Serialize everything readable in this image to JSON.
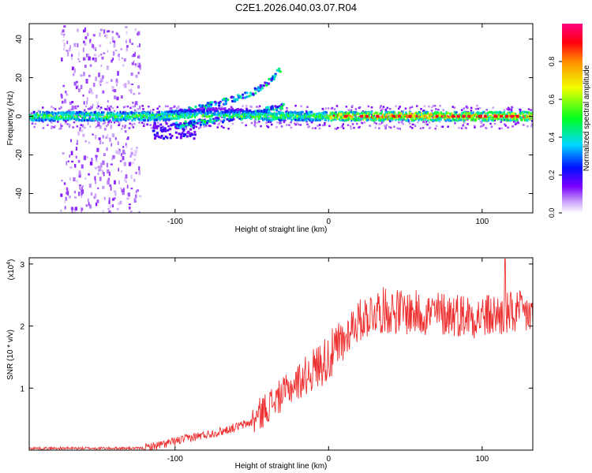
{
  "title": "C2E1.2026.040.03.07.R04",
  "chart_data": [
    {
      "type": "heatmap",
      "title": "C2E1.2026.040.03.07.R04",
      "xlabel": "Height of straight line (km)",
      "ylabel": "Frequency (Hz)",
      "xlim": [
        -195,
        133
      ],
      "ylim": [
        -50,
        48
      ],
      "xticks": [
        -100,
        0,
        100
      ],
      "yticks": [
        -40,
        -20,
        0,
        20,
        40
      ],
      "xtick_labels": [
        "-100",
        "0",
        "100"
      ],
      "ytick_labels": [
        "-40",
        "-20",
        "0",
        "20",
        "40"
      ],
      "colorbar": {
        "label": "Normalized spectral amplitude",
        "range": [
          0,
          1
        ],
        "ticks": [
          0.0,
          0.2,
          0.4,
          0.6,
          0.8
        ],
        "tick_labels": [
          "0.0",
          "0.2",
          "0.4",
          "0.6",
          "0.8"
        ],
        "colors": [
          "#ffffff",
          "#c8a0f8",
          "#7a00ff",
          "#0010ff",
          "#00d8ff",
          "#00ff20",
          "#f0ff00",
          "#ff8c00",
          "#ff0010",
          "#ff0080"
        ]
      },
      "main_band": {
        "frequency_hz": 0,
        "amplitude_start": 0.35,
        "amplitude_end": 0.85
      },
      "branches": [
        {
          "name": "upper-branch",
          "x": [
            -115,
            -95,
            -80,
            -65,
            -50,
            -38,
            -32
          ],
          "y": [
            0,
            3,
            6,
            9,
            13,
            20,
            25
          ]
        },
        {
          "name": "lower-branch",
          "x": [
            -100,
            -80,
            -60,
            -45,
            -30
          ],
          "y": [
            -4,
            -2,
            0,
            3,
            6
          ]
        }
      ]
    },
    {
      "type": "line",
      "xlabel": "Height of straight line (km)",
      "ylabel": "SNR (10 * v/v)",
      "y_scale_label": "(x10",
      "y_scale_exponent": "4",
      "xlim": [
        -195,
        133
      ],
      "ylim": [
        0,
        3.1
      ],
      "xticks": [
        -100,
        0,
        100
      ],
      "yticks": [
        1,
        2,
        3
      ],
      "xtick_labels": [
        "-100",
        "0",
        "100"
      ],
      "ytick_labels": [
        "1",
        "2",
        "3"
      ],
      "series": [
        {
          "name": "SNR",
          "color": "#ee2e2e",
          "envelope_x": [
            -195,
            -120,
            -110,
            -90,
            -70,
            -50,
            -40,
            -30,
            -15,
            -5,
            5,
            10,
            15,
            30,
            40,
            60,
            80,
            100,
            120,
            133
          ],
          "envelope_y": [
            0.03,
            0.03,
            0.08,
            0.2,
            0.3,
            0.45,
            0.7,
            0.9,
            1.2,
            1.4,
            1.6,
            1.75,
            2.0,
            2.25,
            2.25,
            2.2,
            2.2,
            2.15,
            2.2,
            2.2
          ],
          "peak_x": 115,
          "peak_y": 3.08
        }
      ]
    }
  ]
}
